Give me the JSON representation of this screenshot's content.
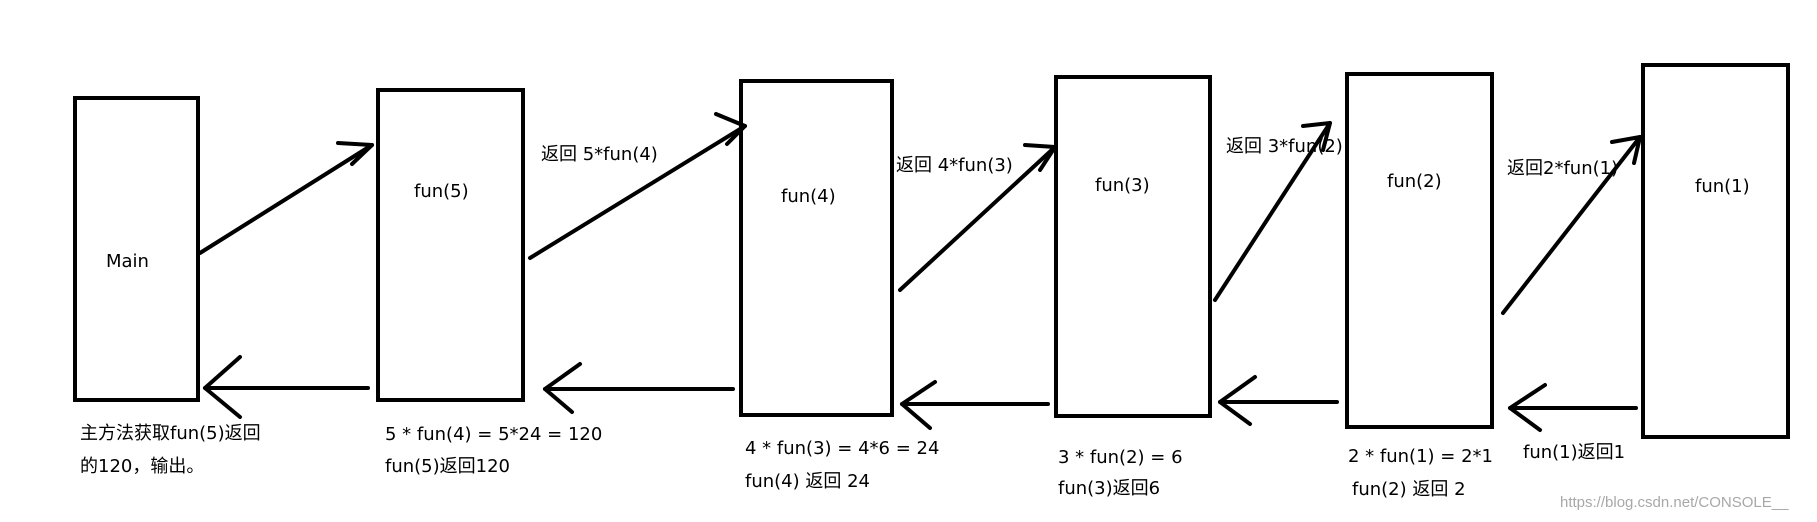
{
  "boxes": [
    {
      "id": "main",
      "label": "Main"
    },
    {
      "id": "fun5",
      "label": "fun(5)"
    },
    {
      "id": "fun4",
      "label": "fun(4)"
    },
    {
      "id": "fun3",
      "label": "fun(3)"
    },
    {
      "id": "fun2",
      "label": "fun(2)"
    },
    {
      "id": "fun1",
      "label": "fun(1)"
    }
  ],
  "call_labels": [
    "返回 5*fun(4)",
    "返回 4*fun(3)",
    "返回 3*fun(2)",
    "返回2*fun(1)"
  ],
  "returns": [
    {
      "line1": "主方法获取fun(5)返回",
      "line2": "的120，输出。"
    },
    {
      "line1": "5 * fun(4) = 5*24 = 120",
      "line2": "fun(5)返回120"
    },
    {
      "line1": "4 * fun(3) = 4*6 = 24",
      "line2": "fun(4) 返回 24"
    },
    {
      "line1": "3 * fun(2) = 6",
      "line2": "fun(3)返回6"
    },
    {
      "line1": "2 * fun(1) = 2*1",
      "line2": "fun(2) 返回 2"
    },
    {
      "line1": "fun(1)返回1",
      "line2": ""
    }
  ],
  "watermark": "https://blog.csdn.net/CONSOLE__"
}
